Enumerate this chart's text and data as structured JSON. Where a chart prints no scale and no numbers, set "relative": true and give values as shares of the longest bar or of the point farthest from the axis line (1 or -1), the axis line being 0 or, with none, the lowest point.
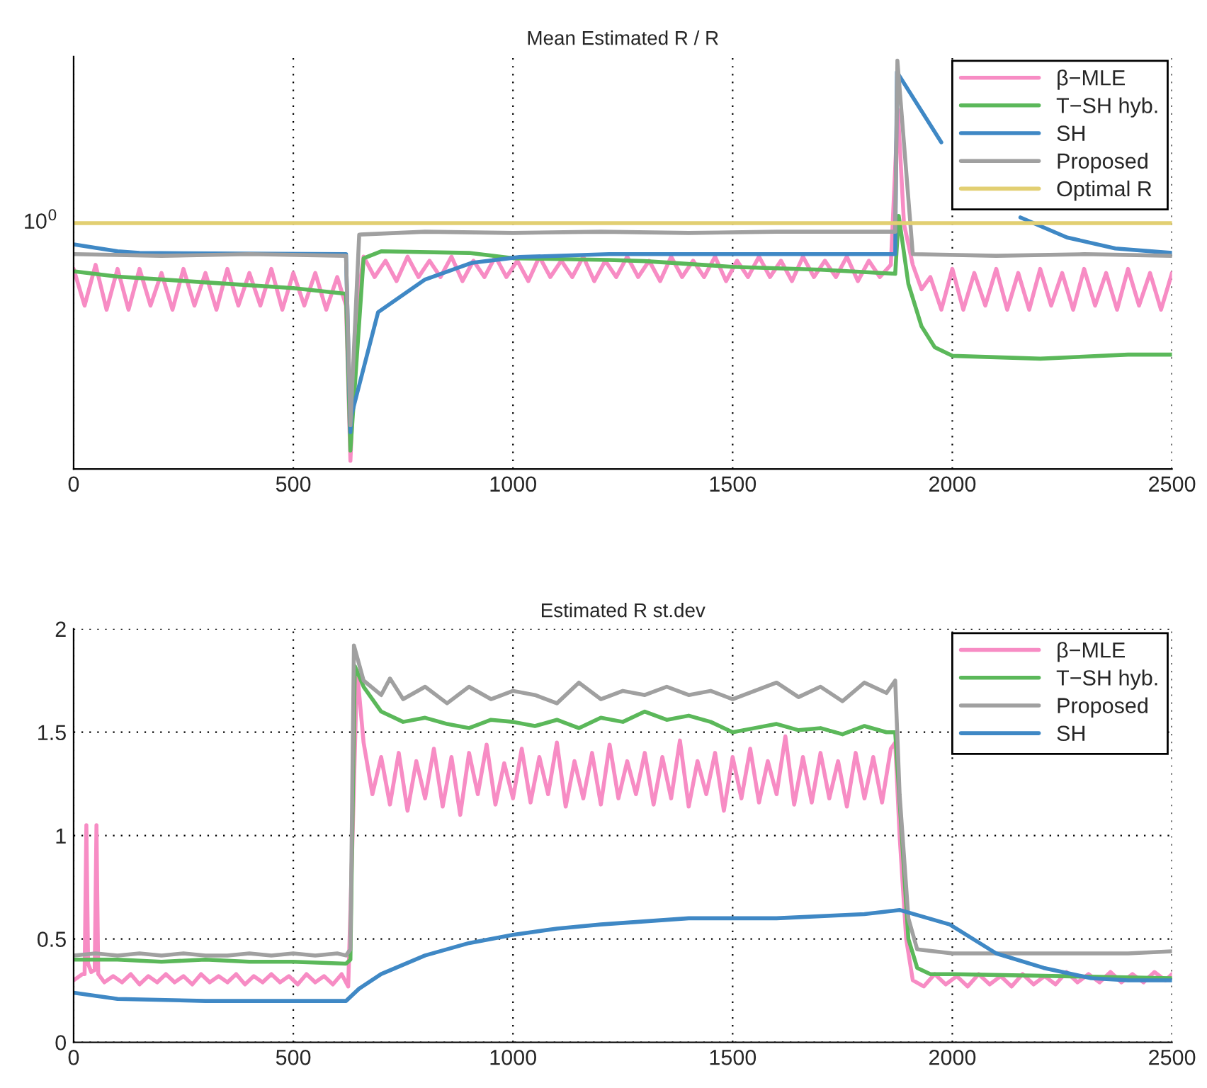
{
  "chart_data": [
    {
      "type": "line",
      "title": "Mean Estimated R / R",
      "relative": true,
      "xlim": [
        0,
        2500
      ],
      "xticks": [
        0,
        500,
        1000,
        1500,
        2000,
        2500
      ],
      "tick_labels": "x",
      "grid": "x",
      "legend": "top right",
      "line_style": "solid",
      "annotations": [
        {
          "text": "10$^{0}$",
          "x": 0,
          "y": 0.602
        }
      ],
      "series": [
        {
          "name": "β−MLE",
          "color": "#f78cc4",
          "x": [
            0,
            25,
            50,
            75,
            100,
            125,
            150,
            175,
            200,
            225,
            250,
            275,
            300,
            325,
            350,
            375,
            400,
            425,
            450,
            475,
            500,
            525,
            550,
            575,
            600,
            620,
            630,
            645,
            660,
            685,
            710,
            735,
            760,
            785,
            810,
            835,
            860,
            885,
            910,
            935,
            960,
            985,
            1010,
            1035,
            1060,
            1085,
            1110,
            1135,
            1160,
            1185,
            1210,
            1235,
            1260,
            1285,
            1310,
            1335,
            1360,
            1385,
            1410,
            1435,
            1460,
            1485,
            1510,
            1535,
            1560,
            1585,
            1610,
            1635,
            1660,
            1685,
            1710,
            1735,
            1760,
            1785,
            1810,
            1835,
            1860,
            1876,
            1890,
            1910,
            1930,
            1950,
            1975,
            2000,
            2025,
            2050,
            2075,
            2100,
            2125,
            2150,
            2175,
            2200,
            2225,
            2250,
            2275,
            2300,
            2325,
            2350,
            2375,
            2400,
            2425,
            2450,
            2475,
            2500
          ],
          "values": [
            0.49,
            0.4,
            0.5,
            0.39,
            0.49,
            0.39,
            0.49,
            0.4,
            0.48,
            0.39,
            0.49,
            0.4,
            0.48,
            0.39,
            0.49,
            0.4,
            0.48,
            0.4,
            0.49,
            0.39,
            0.48,
            0.4,
            0.48,
            0.39,
            0.47,
            0.4,
            0.02,
            0.4,
            0.52,
            0.47,
            0.51,
            0.46,
            0.52,
            0.47,
            0.51,
            0.47,
            0.52,
            0.46,
            0.51,
            0.47,
            0.52,
            0.47,
            0.51,
            0.46,
            0.52,
            0.47,
            0.51,
            0.47,
            0.52,
            0.46,
            0.51,
            0.47,
            0.52,
            0.47,
            0.51,
            0.46,
            0.52,
            0.47,
            0.51,
            0.47,
            0.52,
            0.46,
            0.51,
            0.47,
            0.52,
            0.47,
            0.51,
            0.46,
            0.52,
            0.47,
            0.51,
            0.47,
            0.52,
            0.46,
            0.51,
            0.47,
            0.5,
            0.88,
            0.6,
            0.5,
            0.44,
            0.47,
            0.39,
            0.49,
            0.39,
            0.48,
            0.4,
            0.49,
            0.39,
            0.48,
            0.39,
            0.49,
            0.4,
            0.48,
            0.39,
            0.49,
            0.4,
            0.48,
            0.39,
            0.49,
            0.4,
            0.48,
            0.39,
            0.48
          ]
        },
        {
          "name": "T−SH hyb.",
          "color": "#5bb85a",
          "x": [
            0,
            100,
            300,
            500,
            620,
            630,
            660,
            700,
            900,
            1000,
            1219,
            1300,
            1500,
            1700,
            1870,
            1878,
            1900,
            1930,
            1960,
            2000,
            2200,
            2400,
            2500
          ],
          "values": [
            0.484,
            0.471,
            0.457,
            0.443,
            0.429,
            0.045,
            0.516,
            0.533,
            0.529,
            0.516,
            0.512,
            0.509,
            0.495,
            0.488,
            0.478,
            0.62,
            0.453,
            0.349,
            0.298,
            0.277,
            0.27,
            0.28,
            0.28
          ]
        },
        {
          "name": "SH",
          "color": "#3f88c5",
          "x": [
            0,
            100,
            150,
            620,
            630,
            632,
            693,
            800,
            907,
            1015,
            1219,
            1870,
            1874,
            1975,
            2050,
            2125,
            2155,
            2261,
            2371,
            2500
          ],
          "values": [
            0.55,
            0.533,
            0.529,
            0.526,
            0.09,
            0.13,
            0.384,
            0.464,
            0.505,
            0.519,
            0.526,
            0.526,
            0.972,
            0.8,
            null,
            null,
            0.616,
            0.567,
            0.54,
            0.529
          ]
        },
        {
          "name": "Proposed",
          "color": "#a0a0a0",
          "x": [
            0,
            200,
            400,
            620,
            630,
            650,
            800,
            1000,
            1200,
            1400,
            1600,
            1870,
            1875,
            1910,
            2100,
            2300,
            2500
          ],
          "values": [
            0.526,
            0.522,
            0.526,
            0.522,
            0.107,
            0.574,
            0.581,
            0.578,
            0.581,
            0.578,
            0.581,
            0.581,
            1.0,
            0.526,
            0.522,
            0.526,
            0.522
          ]
        },
        {
          "name": "Optimal R",
          "color": "#e2cf72",
          "x": [
            0,
            2500
          ],
          "values": [
            0.602,
            0.602
          ]
        }
      ]
    },
    {
      "type": "line",
      "title": "Estimated R st.dev",
      "xlim": [
        0,
        2500
      ],
      "xticks": [
        0,
        500,
        1000,
        1500,
        2000,
        2500
      ],
      "ylim": [
        0,
        2
      ],
      "yticks": [
        0,
        0.5,
        1,
        1.5,
        2
      ],
      "grid": true,
      "legend": "top right",
      "line_style": "solid",
      "series": [
        {
          "name": "β−MLE",
          "color": "#f78cc4",
          "x": [
            0,
            20,
            25,
            29,
            33,
            40,
            48,
            52,
            56,
            70,
            90,
            110,
            130,
            150,
            170,
            190,
            210,
            230,
            250,
            270,
            290,
            310,
            330,
            350,
            370,
            390,
            410,
            430,
            450,
            470,
            490,
            510,
            530,
            550,
            570,
            590,
            610,
            625,
            635,
            645,
            660,
            680,
            700,
            720,
            740,
            760,
            780,
            800,
            820,
            840,
            860,
            880,
            900,
            920,
            940,
            960,
            980,
            1000,
            1020,
            1040,
            1060,
            1080,
            1100,
            1120,
            1140,
            1160,
            1180,
            1200,
            1220,
            1240,
            1260,
            1280,
            1300,
            1320,
            1340,
            1360,
            1380,
            1400,
            1420,
            1440,
            1460,
            1480,
            1500,
            1520,
            1540,
            1560,
            1580,
            1600,
            1620,
            1640,
            1660,
            1680,
            1700,
            1720,
            1740,
            1760,
            1780,
            1800,
            1820,
            1840,
            1860,
            1870,
            1880,
            1895,
            1910,
            1935,
            1960,
            1985,
            2010,
            2035,
            2060,
            2085,
            2110,
            2135,
            2160,
            2185,
            2210,
            2235,
            2260,
            2285,
            2310,
            2335,
            2360,
            2385,
            2410,
            2435,
            2460,
            2485,
            2500
          ],
          "values": [
            0.3,
            0.33,
            0.33,
            1.05,
            0.38,
            0.34,
            0.35,
            1.05,
            0.33,
            0.29,
            0.32,
            0.29,
            0.33,
            0.28,
            0.32,
            0.29,
            0.33,
            0.29,
            0.32,
            0.28,
            0.33,
            0.29,
            0.32,
            0.29,
            0.33,
            0.28,
            0.32,
            0.29,
            0.33,
            0.29,
            0.32,
            0.28,
            0.33,
            0.29,
            0.32,
            0.28,
            0.33,
            0.27,
            1.0,
            1.8,
            1.45,
            1.2,
            1.38,
            1.15,
            1.4,
            1.12,
            1.36,
            1.18,
            1.42,
            1.14,
            1.38,
            1.1,
            1.4,
            1.2,
            1.44,
            1.15,
            1.35,
            1.18,
            1.42,
            1.16,
            1.38,
            1.2,
            1.45,
            1.14,
            1.36,
            1.18,
            1.4,
            1.15,
            1.44,
            1.18,
            1.36,
            1.2,
            1.4,
            1.15,
            1.38,
            1.18,
            1.46,
            1.14,
            1.36,
            1.2,
            1.4,
            1.12,
            1.38,
            1.18,
            1.42,
            1.16,
            1.36,
            1.2,
            1.48,
            1.15,
            1.38,
            1.16,
            1.4,
            1.18,
            1.36,
            1.14,
            1.4,
            1.18,
            1.38,
            1.16,
            1.42,
            1.45,
            1.0,
            0.5,
            0.3,
            0.27,
            0.33,
            0.28,
            0.32,
            0.27,
            0.33,
            0.28,
            0.32,
            0.27,
            0.33,
            0.28,
            0.32,
            0.28,
            0.34,
            0.29,
            0.33,
            0.29,
            0.34,
            0.29,
            0.33,
            0.29,
            0.34,
            0.3,
            0.33
          ]
        },
        {
          "name": "T−SH hyb.",
          "color": "#5bb85a",
          "x": [
            0,
            100,
            200,
            300,
            400,
            500,
            620,
            630,
            640,
            660,
            700,
            750,
            800,
            850,
            900,
            950,
            1000,
            1050,
            1100,
            1150,
            1200,
            1250,
            1300,
            1350,
            1400,
            1450,
            1500,
            1550,
            1600,
            1650,
            1700,
            1750,
            1800,
            1850,
            1870,
            1885,
            1900,
            1920,
            1950,
            2000,
            2250,
            2500
          ],
          "values": [
            0.4,
            0.4,
            0.39,
            0.4,
            0.39,
            0.39,
            0.38,
            0.4,
            1.82,
            1.72,
            1.6,
            1.55,
            1.57,
            1.54,
            1.52,
            1.56,
            1.55,
            1.53,
            1.56,
            1.52,
            1.57,
            1.55,
            1.6,
            1.56,
            1.58,
            1.55,
            1.5,
            1.52,
            1.54,
            1.51,
            1.52,
            1.49,
            1.53,
            1.5,
            1.5,
            1.0,
            0.5,
            0.36,
            0.33,
            0.33,
            0.32,
            0.31
          ]
        },
        {
          "name": "Proposed",
          "color": "#a0a0a0",
          "x": [
            0,
            50,
            100,
            150,
            200,
            250,
            300,
            350,
            400,
            450,
            500,
            550,
            600,
            620,
            630,
            638,
            660,
            700,
            720,
            750,
            800,
            850,
            900,
            950,
            1000,
            1050,
            1100,
            1150,
            1200,
            1250,
            1300,
            1350,
            1400,
            1450,
            1500,
            1550,
            1600,
            1650,
            1700,
            1750,
            1800,
            1850,
            1870,
            1880,
            1900,
            1920,
            2000,
            2100,
            2200,
            2300,
            2400,
            2500
          ],
          "values": [
            0.42,
            0.43,
            0.42,
            0.43,
            0.42,
            0.43,
            0.42,
            0.42,
            0.43,
            0.42,
            0.43,
            0.42,
            0.43,
            0.42,
            0.45,
            1.92,
            1.75,
            1.68,
            1.76,
            1.66,
            1.72,
            1.64,
            1.72,
            1.66,
            1.7,
            1.68,
            1.64,
            1.74,
            1.66,
            1.7,
            1.68,
            1.72,
            1.68,
            1.7,
            1.66,
            1.7,
            1.74,
            1.67,
            1.72,
            1.65,
            1.74,
            1.69,
            1.75,
            1.2,
            0.6,
            0.45,
            0.43,
            0.43,
            0.43,
            0.43,
            0.43,
            0.44
          ]
        },
        {
          "name": "SH",
          "color": "#3f88c5",
          "x": [
            0,
            100,
            300,
            620,
            650,
            700,
            800,
            900,
            1000,
            1100,
            1200,
            1400,
            1600,
            1800,
            1880,
            1994,
            2100,
            2208,
            2316,
            2400,
            2500
          ],
          "values": [
            0.24,
            0.21,
            0.2,
            0.2,
            0.26,
            0.33,
            0.42,
            0.48,
            0.52,
            0.55,
            0.57,
            0.6,
            0.6,
            0.62,
            0.64,
            0.57,
            0.43,
            0.36,
            0.31,
            0.3,
            0.3
          ]
        }
      ]
    }
  ]
}
